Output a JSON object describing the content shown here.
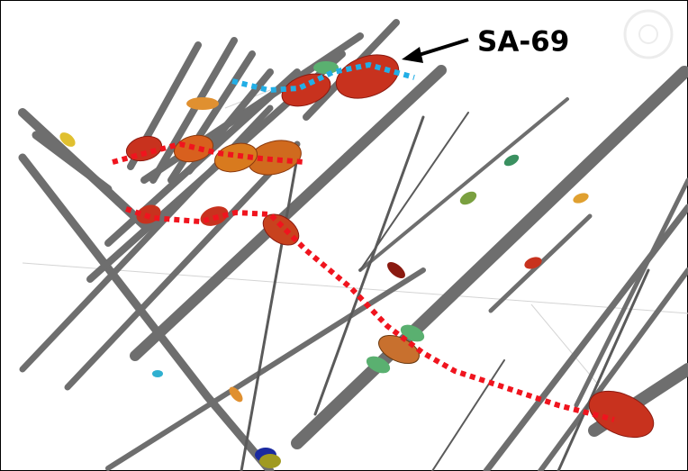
{
  "label": "SA-69"
}
